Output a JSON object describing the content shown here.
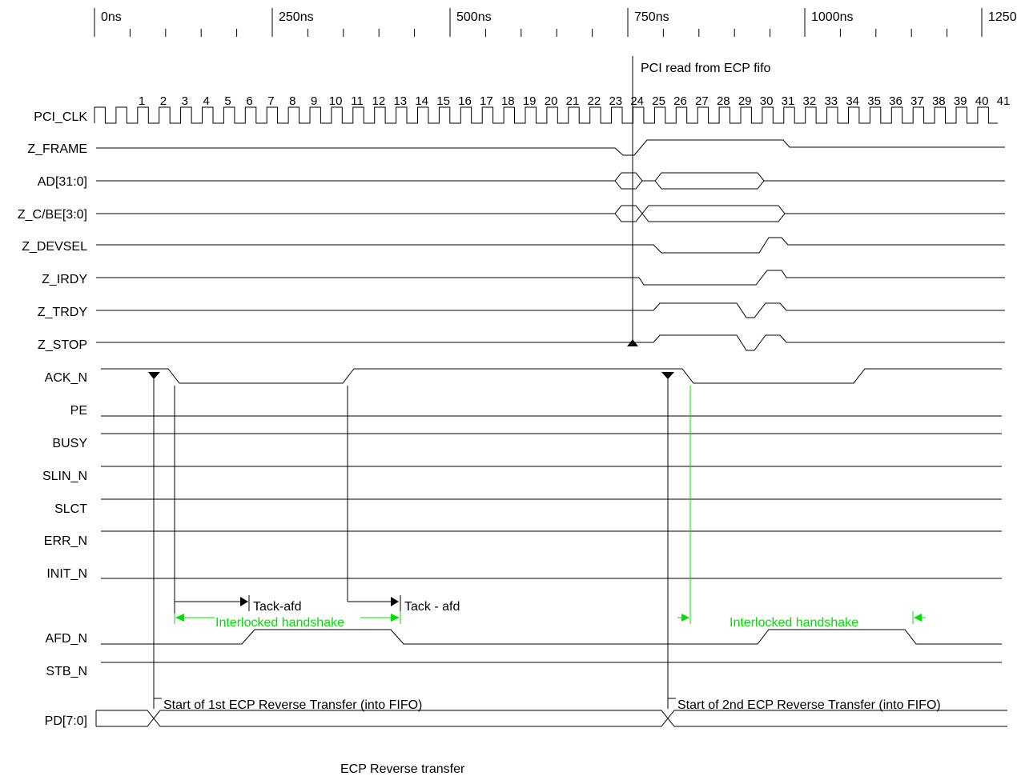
{
  "timescale": {
    "labels": [
      "0ns",
      "250ns",
      "500ns",
      "750ns",
      "1000ns",
      "1250ns"
    ]
  },
  "clock_numbers": [
    "1",
    "2",
    "3",
    "4",
    "5",
    "6",
    "7",
    "8",
    "9",
    "10",
    "11",
    "12",
    "13",
    "14",
    "15",
    "16",
    "17",
    "18",
    "19",
    "20",
    "21",
    "22",
    "23",
    "24",
    "25",
    "26",
    "27",
    "28",
    "29",
    "30",
    "31",
    "32",
    "33",
    "34",
    "35",
    "36",
    "37",
    "38",
    "39",
    "40",
    "41"
  ],
  "signals": [
    {
      "name": "PCI_CLK"
    },
    {
      "name": "Z_FRAME"
    },
    {
      "name": "AD[31:0]"
    },
    {
      "name": "Z_C/BE[3:0]"
    },
    {
      "name": "Z_DEVSEL"
    },
    {
      "name": "Z_IRDY"
    },
    {
      "name": "Z_TRDY"
    },
    {
      "name": "Z_STOP"
    },
    {
      "name": "ACK_N"
    },
    {
      "name": "PE"
    },
    {
      "name": "BUSY"
    },
    {
      "name": "SLIN_N"
    },
    {
      "name": "SLCT"
    },
    {
      "name": "ERR_N"
    },
    {
      "name": "INIT_N"
    },
    {
      "name": "AFD_N"
    },
    {
      "name": "STB_N"
    },
    {
      "name": "PD[7:0]"
    }
  ],
  "annotations": {
    "pci_read": "PCI read from ECP fifo",
    "tack_afd_1": "Tack-afd",
    "tack_afd_2": "Tack - afd",
    "handshake_1": "Interlocked handshake",
    "handshake_2": "Interlocked handshake",
    "start_1": "Start of 1st ECP Reverse Transfer (into FIFO)",
    "start_2": "Start of 2nd ECP Reverse Transfer (into FIFO)"
  },
  "caption": "ECP Reverse transfer",
  "colors": {
    "line": "#000000",
    "handshake": "#00e000"
  }
}
